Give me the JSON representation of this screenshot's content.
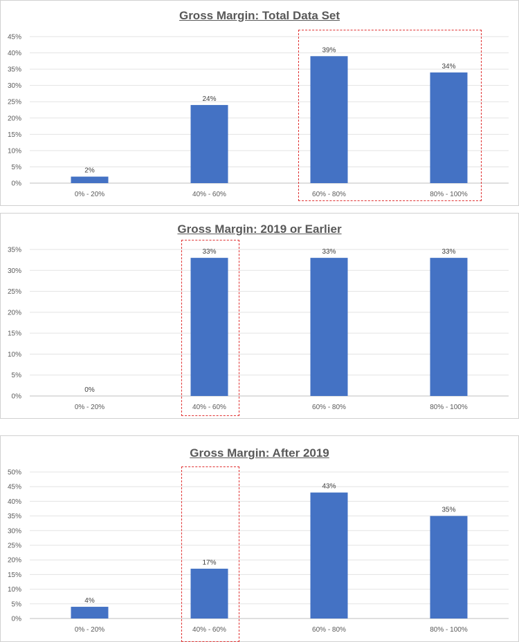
{
  "chart_data": [
    {
      "type": "bar",
      "title": "Gross Margin: Total Data Set",
      "categories": [
        "0% - 20%",
        "40% - 60%",
        "60% - 80%",
        "80% - 100%"
      ],
      "values": [
        2,
        24,
        39,
        34
      ],
      "data_labels": [
        "2%",
        "24%",
        "39%",
        "34%"
      ],
      "ylim": [
        0,
        45
      ],
      "yticks": [
        "0%",
        "5%",
        "10%",
        "15%",
        "20%",
        "25%",
        "30%",
        "35%",
        "40%",
        "45%"
      ],
      "grid": true,
      "bar_color": "#4472C4",
      "highlighted_categories": [
        "60% - 80%",
        "80% - 100%"
      ],
      "highlight_color": "#E03030"
    },
    {
      "type": "bar",
      "title": "Gross Margin: 2019 or Earlier",
      "categories": [
        "0% - 20%",
        "40% - 60%",
        "60% - 80%",
        "80% - 100%"
      ],
      "values": [
        0,
        33,
        33,
        33
      ],
      "data_labels": [
        "0%",
        "33%",
        "33%",
        "33%"
      ],
      "ylim": [
        0,
        35
      ],
      "yticks": [
        "0%",
        "5%",
        "10%",
        "15%",
        "20%",
        "25%",
        "30%",
        "35%"
      ],
      "grid": true,
      "bar_color": "#4472C4",
      "highlighted_categories": [
        "40% - 60%"
      ],
      "highlight_color": "#E03030"
    },
    {
      "type": "bar",
      "title": "Gross Margin: After 2019",
      "categories": [
        "0% - 20%",
        "40% - 60%",
        "60% - 80%",
        "80% - 100%"
      ],
      "values": [
        4,
        17,
        43,
        35
      ],
      "data_labels": [
        "4%",
        "17%",
        "43%",
        "35%"
      ],
      "ylim": [
        0,
        50
      ],
      "yticks": [
        "0%",
        "5%",
        "10%",
        "15%",
        "20%",
        "25%",
        "30%",
        "35%",
        "40%",
        "45%",
        "50%"
      ],
      "grid": true,
      "bar_color": "#4472C4",
      "highlighted_categories": [
        "40% - 60%"
      ],
      "highlight_color": "#E03030"
    }
  ]
}
